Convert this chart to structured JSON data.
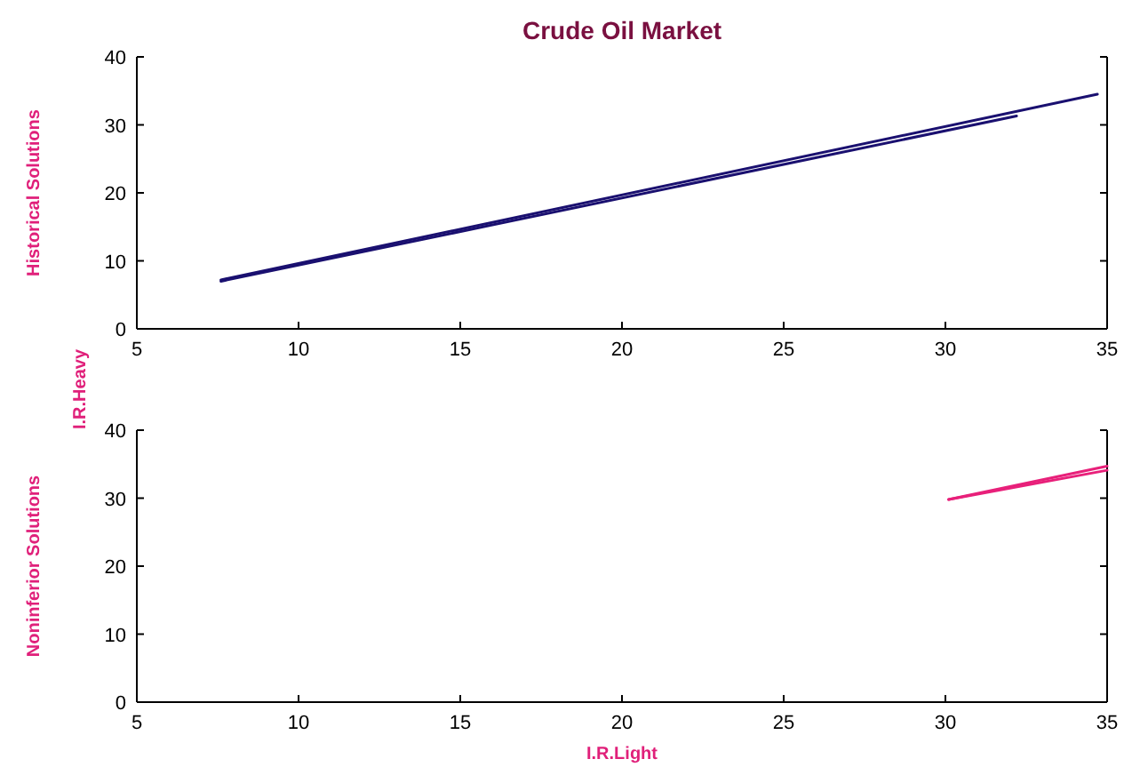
{
  "chart_data": [
    {
      "type": "line",
      "title": "Crude Oil Market",
      "ylabel": "Historical Solutions",
      "annotations": [
        "I.R.Heavy"
      ],
      "xlim": [
        5,
        35
      ],
      "xticks": [
        5,
        10,
        15,
        20,
        25,
        30,
        35
      ],
      "ylim": [
        0,
        40
      ],
      "yticks": [
        0,
        10,
        20,
        30,
        40
      ],
      "series": [
        {
          "color": "#1a1070",
          "x": [
            7.6,
            34.7
          ],
          "values": [
            7.2,
            34.5
          ]
        },
        {
          "color": "#1a1070",
          "x": [
            7.6,
            32.2
          ],
          "values": [
            7.0,
            31.3
          ]
        }
      ]
    },
    {
      "type": "line",
      "ylabel": "Noninferior Solutions",
      "xlabel": "I.R.Light",
      "xlim": [
        5,
        35
      ],
      "xticks": [
        5,
        10,
        15,
        20,
        25,
        30,
        35
      ],
      "ylim": [
        0,
        40
      ],
      "yticks": [
        0,
        10,
        20,
        30,
        40
      ],
      "series": [
        {
          "color": "#e8207a",
          "x": [
            30.1,
            35
          ],
          "values": [
            29.8,
            34.7
          ]
        },
        {
          "color": "#e8207a",
          "x": [
            30.1,
            35
          ],
          "values": [
            29.8,
            34.1
          ]
        }
      ]
    }
  ]
}
